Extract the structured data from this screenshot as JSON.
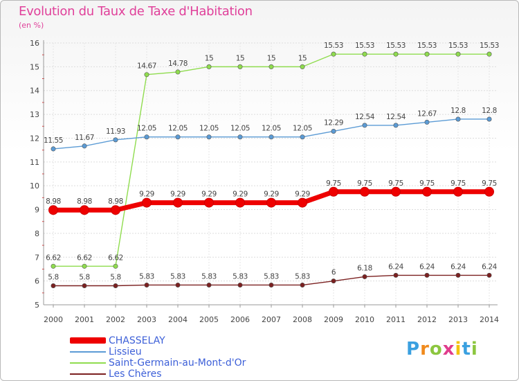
{
  "chart_data": {
    "type": "line",
    "title": "Evolution du Taux de Taxe d'Habitation",
    "subtitle": "(en %)",
    "ylim": [
      5,
      16
    ],
    "yticks": [
      "5",
      "6",
      "7",
      "8",
      "9",
      "10",
      "11",
      "12",
      "13",
      "14",
      "15",
      "16"
    ],
    "x": [
      "2000",
      "2001",
      "2002",
      "2003",
      "2004",
      "2005",
      "2006",
      "2007",
      "2008",
      "2009",
      "2010",
      "2011",
      "2012",
      "2013",
      "2014"
    ],
    "legend_position": "bottom-left",
    "series": [
      {
        "name": "CHASSELAY",
        "color": "#ee0000",
        "values": [
          8.98,
          8.98,
          8.98,
          9.29,
          9.29,
          9.29,
          9.29,
          9.29,
          9.29,
          9.75,
          9.75,
          9.75,
          9.75,
          9.75,
          9.75
        ],
        "labels": [
          "8.98",
          "8.98",
          "8.98",
          "9.29",
          "9.29",
          "9.29",
          "9.29",
          "9.29",
          "9.29",
          "9.75",
          "9.75",
          "9.75",
          "9.75",
          "9.75",
          "9.75"
        ]
      },
      {
        "name": "Lissieu",
        "color": "#5b9bd5",
        "values": [
          11.55,
          11.67,
          11.93,
          12.05,
          12.05,
          12.05,
          12.05,
          12.05,
          12.05,
          12.29,
          12.54,
          12.54,
          12.67,
          12.8,
          12.8
        ],
        "labels": [
          "11.55",
          "11.67",
          "11.93",
          "12.05",
          "12.05",
          "12.05",
          "12.05",
          "12.05",
          "12.05",
          "12.29",
          "12.54",
          "12.54",
          "12.67",
          "12.8",
          "12.8"
        ]
      },
      {
        "name": "Saint-Germain-au-Mont-d'Or",
        "color": "#8fdc4e",
        "values": [
          6.62,
          6.62,
          6.62,
          14.67,
          14.78,
          15,
          15,
          15,
          15,
          15.53,
          15.53,
          15.53,
          15.53,
          15.53,
          15.53
        ],
        "labels": [
          "6.62",
          "6.62",
          "6.62",
          "14.67",
          "14.78",
          "15",
          "15",
          "15",
          "15",
          "15.53",
          "15.53",
          "15.53",
          "15.53",
          "15.53",
          "15.53"
        ]
      },
      {
        "name": "Les Chères",
        "color": "#7b2020",
        "values": [
          5.8,
          5.8,
          5.8,
          5.83,
          5.83,
          5.83,
          5.83,
          5.83,
          5.83,
          6,
          6.18,
          6.24,
          6.24,
          6.24,
          6.24
        ],
        "labels": [
          "5.8",
          "5.8",
          "5.8",
          "5.83",
          "5.83",
          "5.83",
          "5.83",
          "5.83",
          "5.83",
          "6",
          "6.18",
          "6.24",
          "6.24",
          "6.24",
          "6.24"
        ]
      }
    ]
  },
  "logo": {
    "text": "Proxiti",
    "letters": [
      "P",
      "r",
      "o",
      "x",
      "i",
      "t",
      "i"
    ],
    "colors": [
      "#3aa0e0",
      "#f08a1c",
      "#8cc63f",
      "#e03c8c",
      "#f4c20d",
      "#3aa0e0",
      "#8cc63f"
    ]
  }
}
